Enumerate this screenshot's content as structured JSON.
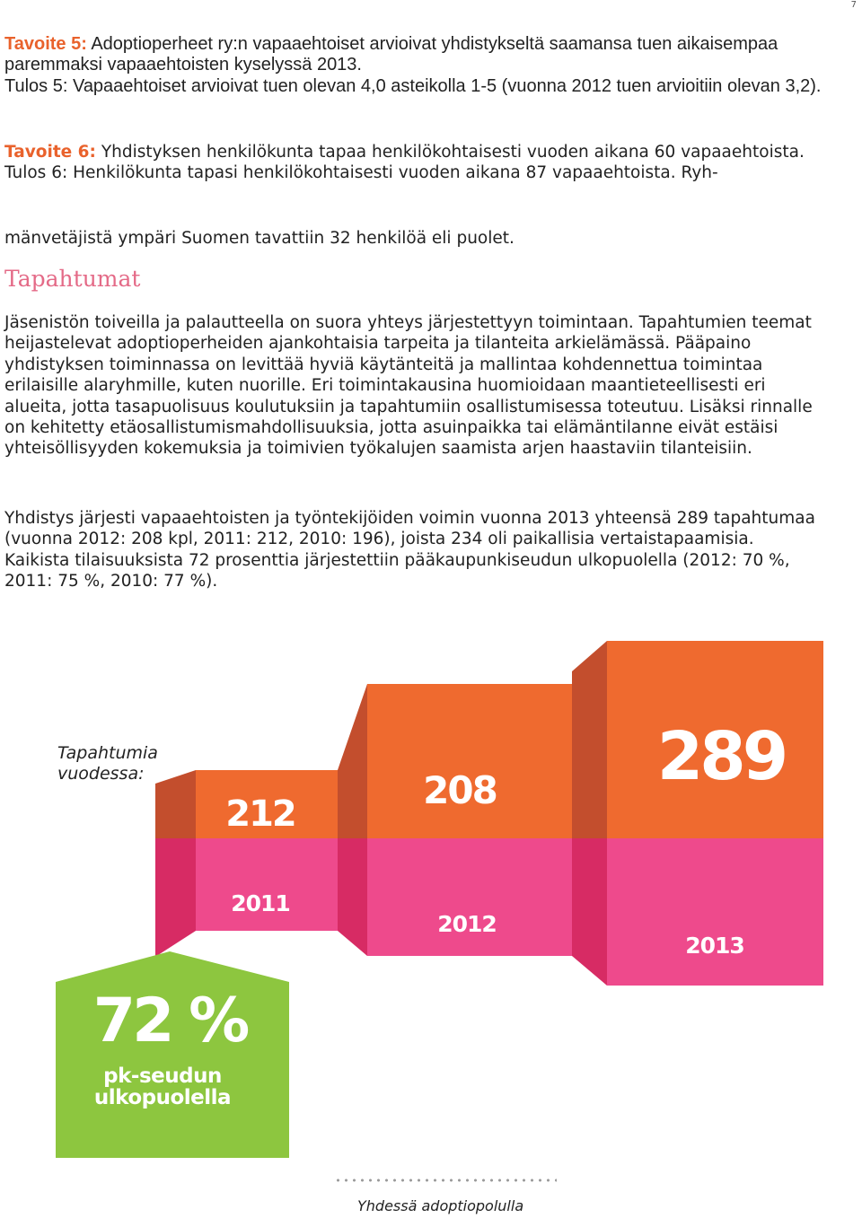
{
  "page_number": "7",
  "goal5": {
    "label": "Tavoite 5:",
    "text": " Adoptioperheet ry:n vapaaehtoiset arvioivat yhdistykseltä saamansa tuen aikaisempaa paremmaksi vapaaehtoisten kyselyssä 2013.",
    "result": "Tulos 5: Vapaaehtoiset arvioivat tuen olevan 4,0 asteikolla 1-5 (vuonna 2012 tuen arvioitiin olevan 3,2)."
  },
  "goal6": {
    "label": "Tavoite 6:",
    "text": " Yhdistyksen henkilökunta tapaa henkilökohtaisesti vuoden aikana 60 vapaaehtoista.",
    "result": "Tulos 6: Henkilökunta tapasi henkilökohtaisesti vuoden aikana 87 vapaaehtoista. Ryh-",
    "result_cont": "mänvetäjistä ympäri Suomen tavattiin 32 henkilöä eli puolet."
  },
  "section_heading": "Tapahtumat",
  "para1": "Jäsenistön toiveilla ja palautteella on suora yhteys järjestettyyn toimintaan. Tapahtumien teemat heijastelevat adoptioperheiden ajankohtaisia tarpeita ja tilanteita arkielämässä. Pääpaino yhdistyksen toiminnassa on levittää hyviä käytänteitä ja mallintaa kohdennettua toimintaa erilaisille alaryhmille, kuten nuorille. Eri toimintakausina huomioidaan maantieteellisesti eri alueita, jotta tasapuolisuus koulutuksiin ja tapahtumiin osallistumisessa toteutuu. Lisäksi rinnalle on kehitetty etäosallistumismahdollisuuksia, jotta asuinpaikka tai elämäntilanne eivät estäisi yhteisöllisyyden kokemuksia ja toimivien työkalujen saamista arjen haastaviin tilanteisiin.",
  "para2": "Yhdistys järjesti vapaaehtoisten ja työntekijöiden voimin vuonna 2013 yhteensä 289 tapahtumaa (vuonna 2012: 208 kpl, 2011: 212, 2010: 196), joista 234 oli paikallisia vertaistapaamisia. Kaikista tilaisuuksista 72 prosenttia järjestettiin pääkaupunkiseudun ulkopuolella (2012: 70 %, 2011: 75 %, 2010: 77 %).",
  "infographic": {
    "label": "Tapahtumia\nvuodessa:",
    "colors": {
      "orange": "#ef6a2f",
      "orange_dark": "#c34e2d",
      "pink": "#ee4a8c",
      "pink_dark": "#d72b64",
      "green": "#8dc63f"
    },
    "chart_data": {
      "type": "bar",
      "categories": [
        "2011",
        "2012",
        "2013"
      ],
      "values": [
        212,
        208,
        289
      ]
    },
    "value_labels": [
      "212",
      "208",
      "289"
    ],
    "share": {
      "value": "72 %",
      "text": "pk-seudun\nulkopuolella"
    }
  },
  "footer": "Yhdessä adoptiopolulla"
}
